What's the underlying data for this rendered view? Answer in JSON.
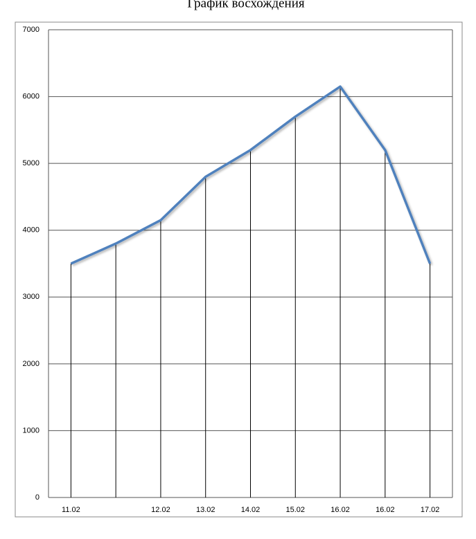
{
  "chart_data": {
    "type": "line",
    "title": "График восхождения",
    "categories": [
      "11.02",
      null,
      "12.02",
      "13.02",
      "14.02",
      "15.02",
      "16.02",
      "16.02",
      "17.02"
    ],
    "values": [
      3500,
      3800,
      4150,
      4800,
      5200,
      5700,
      6150,
      5200,
      3500
    ],
    "color": "#4f81bd",
    "ylim": [
      0,
      7000
    ],
    "yticks": [
      0,
      1000,
      2000,
      3000,
      4000,
      5000,
      6000,
      7000
    ],
    "grid": true,
    "drop_lines": true
  }
}
